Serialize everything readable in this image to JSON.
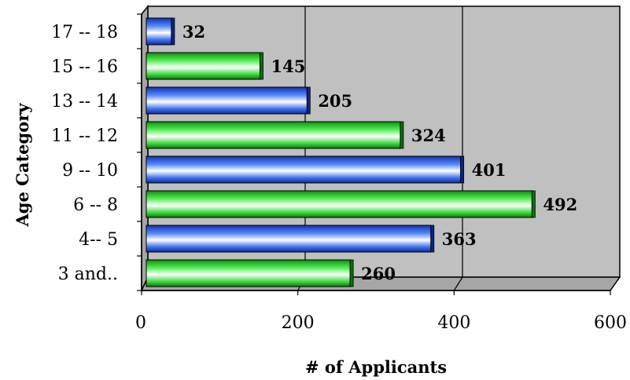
{
  "chart_data": {
    "type": "bar",
    "orientation": "horizontal",
    "title": "",
    "xlabel": "# of Applicants",
    "ylabel": "Age Category",
    "categories": [
      "3 and..",
      "4-- 5",
      "6 -- 8",
      "9 -- 10",
      "11 -- 12",
      "13 -- 14",
      "15 -- 16",
      "17 -- 18"
    ],
    "values": [
      260,
      363,
      492,
      401,
      324,
      205,
      145,
      32
    ],
    "xlim": [
      0,
      600
    ],
    "xticks": [
      "0",
      "200",
      "400",
      "600"
    ],
    "bar_colors": [
      "#22cc22",
      "#2255dd",
      "#22cc22",
      "#2255dd",
      "#22cc22",
      "#2255dd",
      "#22cc22",
      "#2255dd"
    ],
    "plot_background": "#c0c0c0",
    "grid": true,
    "legend": "none",
    "style": "3d"
  }
}
